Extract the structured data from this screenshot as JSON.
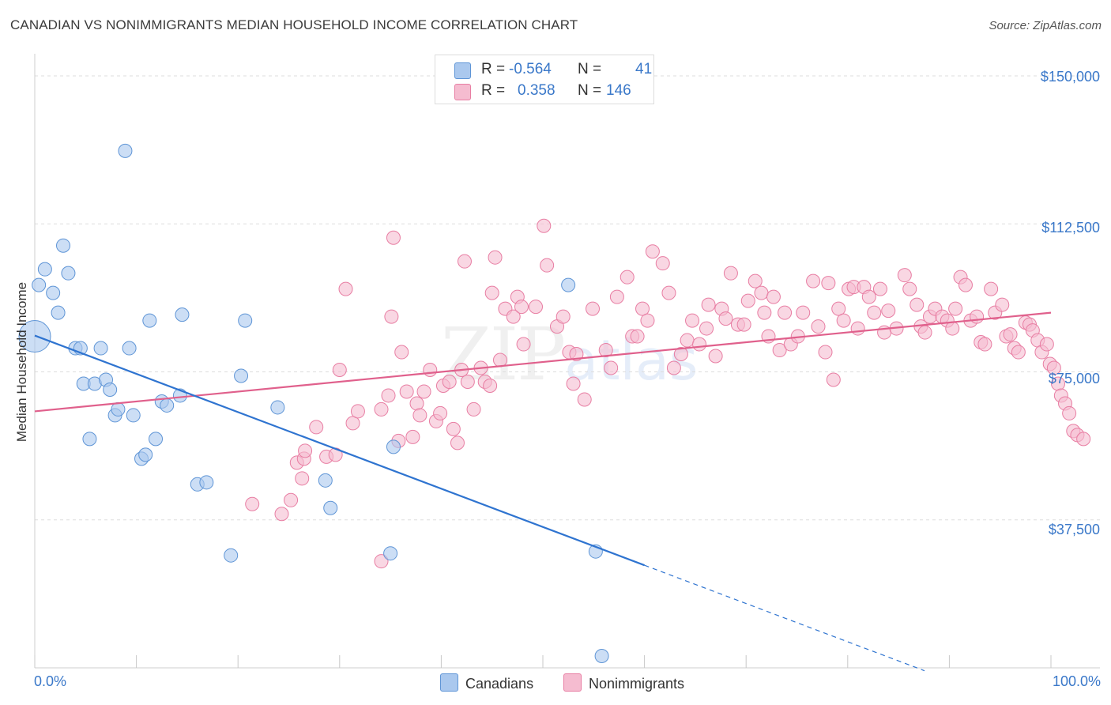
{
  "header": {
    "title": "CANADIAN VS NONIMMIGRANTS MEDIAN HOUSEHOLD INCOME CORRELATION CHART",
    "source": "Source: ZipAtlas.com"
  },
  "watermark": {
    "zip": "ZIP",
    "atlas": "atlas"
  },
  "colors": {
    "blue_fill": "#aac8ee",
    "blue_stroke": "#5f95d6",
    "blue_line": "#2f74d0",
    "pink_fill": "#f5bcd0",
    "pink_stroke": "#e87ea3",
    "pink_line": "#e0608c",
    "accent_text": "#3a78c9",
    "grid": "#dddddd"
  },
  "legend": {
    "rows": [
      {
        "r_label": "R =",
        "r_value": "-0.564",
        "n_label": "N =",
        "n_value": "41"
      },
      {
        "r_label": "R =",
        "r_value": "0.358",
        "n_label": "N =",
        "n_value": "146"
      }
    ],
    "series_labels": [
      "Canadians",
      "Nonimmigrants"
    ]
  },
  "chart_data": {
    "type": "scatter",
    "title": "CANADIAN VS NONIMMIGRANTS MEDIAN HOUSEHOLD INCOME CORRELATION CHART",
    "xlabel": "",
    "ylabel": "Median Household Income",
    "xlim": [
      0,
      100
    ],
    "ylim": [
      0,
      150000
    ],
    "x_tick_labels": [
      "0.0%",
      "100.0%"
    ],
    "y_ticks": [
      37500,
      75000,
      112500,
      150000
    ],
    "y_tick_labels": [
      "$37,500",
      "$75,000",
      "$112,500",
      "$150,000"
    ],
    "grid": true,
    "series": [
      {
        "name": "Canadians",
        "r": -0.564,
        "n": 41,
        "trend": {
          "x0": 0,
          "y0": 84200,
          "x1": 60,
          "y1": 26000,
          "dashed_to_x": 100,
          "dashed_to_y": -12800
        },
        "points": [
          [
            0,
            84000,
            1
          ],
          [
            1,
            101000,
            0
          ],
          [
            0.4,
            97000,
            0
          ],
          [
            1.8,
            95000,
            0
          ],
          [
            2.3,
            90000,
            0
          ],
          [
            2.8,
            107000,
            0
          ],
          [
            3.3,
            100000,
            0
          ],
          [
            4,
            81000,
            0
          ],
          [
            4.5,
            81000,
            0
          ],
          [
            4.8,
            72000,
            0
          ],
          [
            5.4,
            58000,
            0
          ],
          [
            5.9,
            72000,
            0
          ],
          [
            6.5,
            81000,
            0
          ],
          [
            7,
            73000,
            0
          ],
          [
            7.4,
            70500,
            0
          ],
          [
            7.9,
            64000,
            0
          ],
          [
            8.2,
            65500,
            0
          ],
          [
            8.9,
            131000,
            0
          ],
          [
            9.3,
            81000,
            0
          ],
          [
            9.7,
            64000,
            0
          ],
          [
            10.5,
            53000,
            0
          ],
          [
            10.9,
            54000,
            0
          ],
          [
            11.3,
            88000,
            0
          ],
          [
            11.9,
            58000,
            0
          ],
          [
            12.5,
            67500,
            0
          ],
          [
            13,
            66500,
            0
          ],
          [
            14.3,
            69000,
            0
          ],
          [
            14.5,
            89500,
            0
          ],
          [
            16,
            46500,
            0
          ],
          [
            16.9,
            47000,
            0
          ],
          [
            19.3,
            28500,
            0
          ],
          [
            20.3,
            74000,
            0
          ],
          [
            20.7,
            88000,
            0
          ],
          [
            23.9,
            66000,
            0
          ],
          [
            28.6,
            47500,
            0
          ],
          [
            29.1,
            40500,
            0
          ],
          [
            35,
            29000,
            0
          ],
          [
            35.3,
            56000,
            0
          ],
          [
            52.5,
            97000,
            0
          ],
          [
            55.2,
            29500,
            0
          ],
          [
            55.8,
            3000,
            0
          ]
        ]
      },
      {
        "name": "Nonimmigrants",
        "r": 0.358,
        "n": 146,
        "trend": {
          "x0": 0,
          "y0": 65000,
          "x1": 100,
          "y1": 90000
        },
        "points": [
          [
            21.4,
            41500
          ],
          [
            24.3,
            39000
          ],
          [
            25.2,
            42500
          ],
          [
            25.8,
            52000
          ],
          [
            26.3,
            48000
          ],
          [
            26.5,
            53000
          ],
          [
            26.6,
            55000
          ],
          [
            27.7,
            61000
          ],
          [
            28.7,
            53500
          ],
          [
            29.6,
            54000
          ],
          [
            30,
            75500
          ],
          [
            30.6,
            96000
          ],
          [
            31.3,
            62000
          ],
          [
            31.8,
            65000
          ],
          [
            34.1,
            65500
          ],
          [
            34.8,
            69000
          ],
          [
            34.1,
            27000
          ],
          [
            35.1,
            89000
          ],
          [
            35.3,
            109000
          ],
          [
            35.8,
            57500
          ],
          [
            36.1,
            80000
          ],
          [
            36.6,
            70000
          ],
          [
            37.2,
            58500
          ],
          [
            37.6,
            67000
          ],
          [
            37.9,
            64000
          ],
          [
            38.3,
            70000
          ],
          [
            38.9,
            75500
          ],
          [
            39.5,
            62500
          ],
          [
            39.9,
            64500
          ],
          [
            40.2,
            71500
          ],
          [
            40.8,
            72500
          ],
          [
            41.2,
            60500
          ],
          [
            41.6,
            57000
          ],
          [
            42,
            75500
          ],
          [
            42.3,
            103000
          ],
          [
            42.6,
            72500
          ],
          [
            43.2,
            65500
          ],
          [
            43.9,
            76000
          ],
          [
            44.3,
            72500
          ],
          [
            44.8,
            71500
          ],
          [
            45,
            95000
          ],
          [
            45.3,
            104000
          ],
          [
            45.8,
            78000
          ],
          [
            46.3,
            91000
          ],
          [
            47.1,
            89000
          ],
          [
            47.5,
            94000
          ],
          [
            47.9,
            91500
          ],
          [
            48.1,
            82000
          ],
          [
            49.3,
            91500
          ],
          [
            50.1,
            112000
          ],
          [
            50.4,
            102000
          ],
          [
            51.4,
            86500
          ],
          [
            52,
            89000
          ],
          [
            52.6,
            80000
          ],
          [
            53,
            72000
          ],
          [
            53.3,
            79500
          ],
          [
            54.1,
            68000
          ],
          [
            54.9,
            91000
          ],
          [
            56.2,
            80500
          ],
          [
            56.7,
            76000
          ],
          [
            57.3,
            94000
          ],
          [
            58.3,
            99000
          ],
          [
            58.8,
            84000
          ],
          [
            59.3,
            84000
          ],
          [
            59.8,
            91000
          ],
          [
            60.3,
            88000
          ],
          [
            60.8,
            105500
          ],
          [
            61.8,
            102500
          ],
          [
            62.4,
            95000
          ],
          [
            62.9,
            76000
          ],
          [
            63.6,
            79500
          ],
          [
            64.2,
            83000
          ],
          [
            64.7,
            88000
          ],
          [
            65.4,
            82000
          ],
          [
            66.1,
            86000
          ],
          [
            66.3,
            92000
          ],
          [
            67,
            79000
          ],
          [
            67.6,
            91000
          ],
          [
            68,
            88500
          ],
          [
            68.5,
            100000
          ],
          [
            69.2,
            87000
          ],
          [
            69.8,
            87000
          ],
          [
            70.2,
            93000
          ],
          [
            70.9,
            98000
          ],
          [
            71.5,
            95000
          ],
          [
            71.8,
            90000
          ],
          [
            72.2,
            84000
          ],
          [
            72.7,
            94000
          ],
          [
            73.3,
            80500
          ],
          [
            73.8,
            90000
          ],
          [
            74.4,
            82000
          ],
          [
            75.1,
            84000
          ],
          [
            75.6,
            90000
          ],
          [
            76.6,
            98000
          ],
          [
            77.1,
            86500
          ],
          [
            77.8,
            80000
          ],
          [
            78.1,
            97500
          ],
          [
            78.6,
            73000
          ],
          [
            79.1,
            91000
          ],
          [
            79.6,
            88000
          ],
          [
            80.1,
            96000
          ],
          [
            80.6,
            96500
          ],
          [
            81,
            86000
          ],
          [
            81.6,
            96500
          ],
          [
            82.1,
            94000
          ],
          [
            82.6,
            90000
          ],
          [
            83.2,
            96000
          ],
          [
            83.6,
            85000
          ],
          [
            84,
            90500
          ],
          [
            84.8,
            86000
          ],
          [
            85.6,
            99500
          ],
          [
            86.1,
            96000
          ],
          [
            86.8,
            92000
          ],
          [
            87.2,
            86500
          ],
          [
            87.6,
            85000
          ],
          [
            88.1,
            89000
          ],
          [
            88.6,
            91000
          ],
          [
            89.3,
            89000
          ],
          [
            89.8,
            88000
          ],
          [
            90.3,
            86000
          ],
          [
            90.6,
            91000
          ],
          [
            91.1,
            99000
          ],
          [
            91.6,
            97000
          ],
          [
            92.1,
            88000
          ],
          [
            92.7,
            89000
          ],
          [
            93.1,
            82500
          ],
          [
            93.5,
            82000
          ],
          [
            94.1,
            96000
          ],
          [
            94.5,
            90000
          ],
          [
            95.2,
            92000
          ],
          [
            95.6,
            84000
          ],
          [
            96,
            84500
          ],
          [
            96.4,
            81000
          ],
          [
            96.8,
            80000
          ],
          [
            97.5,
            87500
          ],
          [
            97.9,
            87000
          ],
          [
            98.2,
            85500
          ],
          [
            98.7,
            83000
          ],
          [
            99.1,
            80000
          ],
          [
            99.6,
            82000
          ],
          [
            99.9,
            77000
          ],
          [
            100.3,
            76000
          ],
          [
            100.7,
            72000
          ],
          [
            101,
            69000
          ],
          [
            101.4,
            67000
          ],
          [
            101.8,
            64500
          ],
          [
            102.2,
            60000
          ],
          [
            102.6,
            59000
          ],
          [
            103.2,
            58000
          ]
        ]
      }
    ]
  }
}
